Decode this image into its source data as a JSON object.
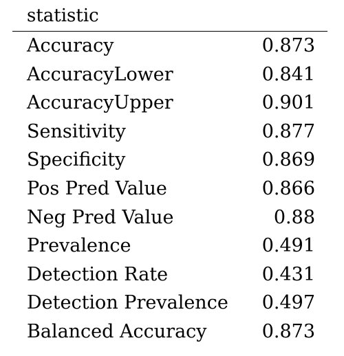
{
  "table": {
    "header": {
      "statistic_label": "statistic",
      "value_label": ""
    },
    "rows": [
      {
        "statistic": "Accuracy",
        "value": "0.873"
      },
      {
        "statistic": "AccuracyLower",
        "value": "0.841"
      },
      {
        "statistic": "AccuracyUpper",
        "value": "0.901"
      },
      {
        "statistic": "Sensitivity",
        "value": "0.877"
      },
      {
        "statistic": "Specificity",
        "value": "0.869"
      },
      {
        "statistic": "Pos Pred Value",
        "value": "0.866"
      },
      {
        "statistic": "Neg Pred Value",
        "value": "0.88"
      },
      {
        "statistic": "Prevalence",
        "value": "0.491"
      },
      {
        "statistic": "Detection Rate",
        "value": "0.431"
      },
      {
        "statistic": "Detection Prevalence",
        "value": "0.497"
      },
      {
        "statistic": "Balanced Accuracy",
        "value": "0.873"
      }
    ]
  }
}
